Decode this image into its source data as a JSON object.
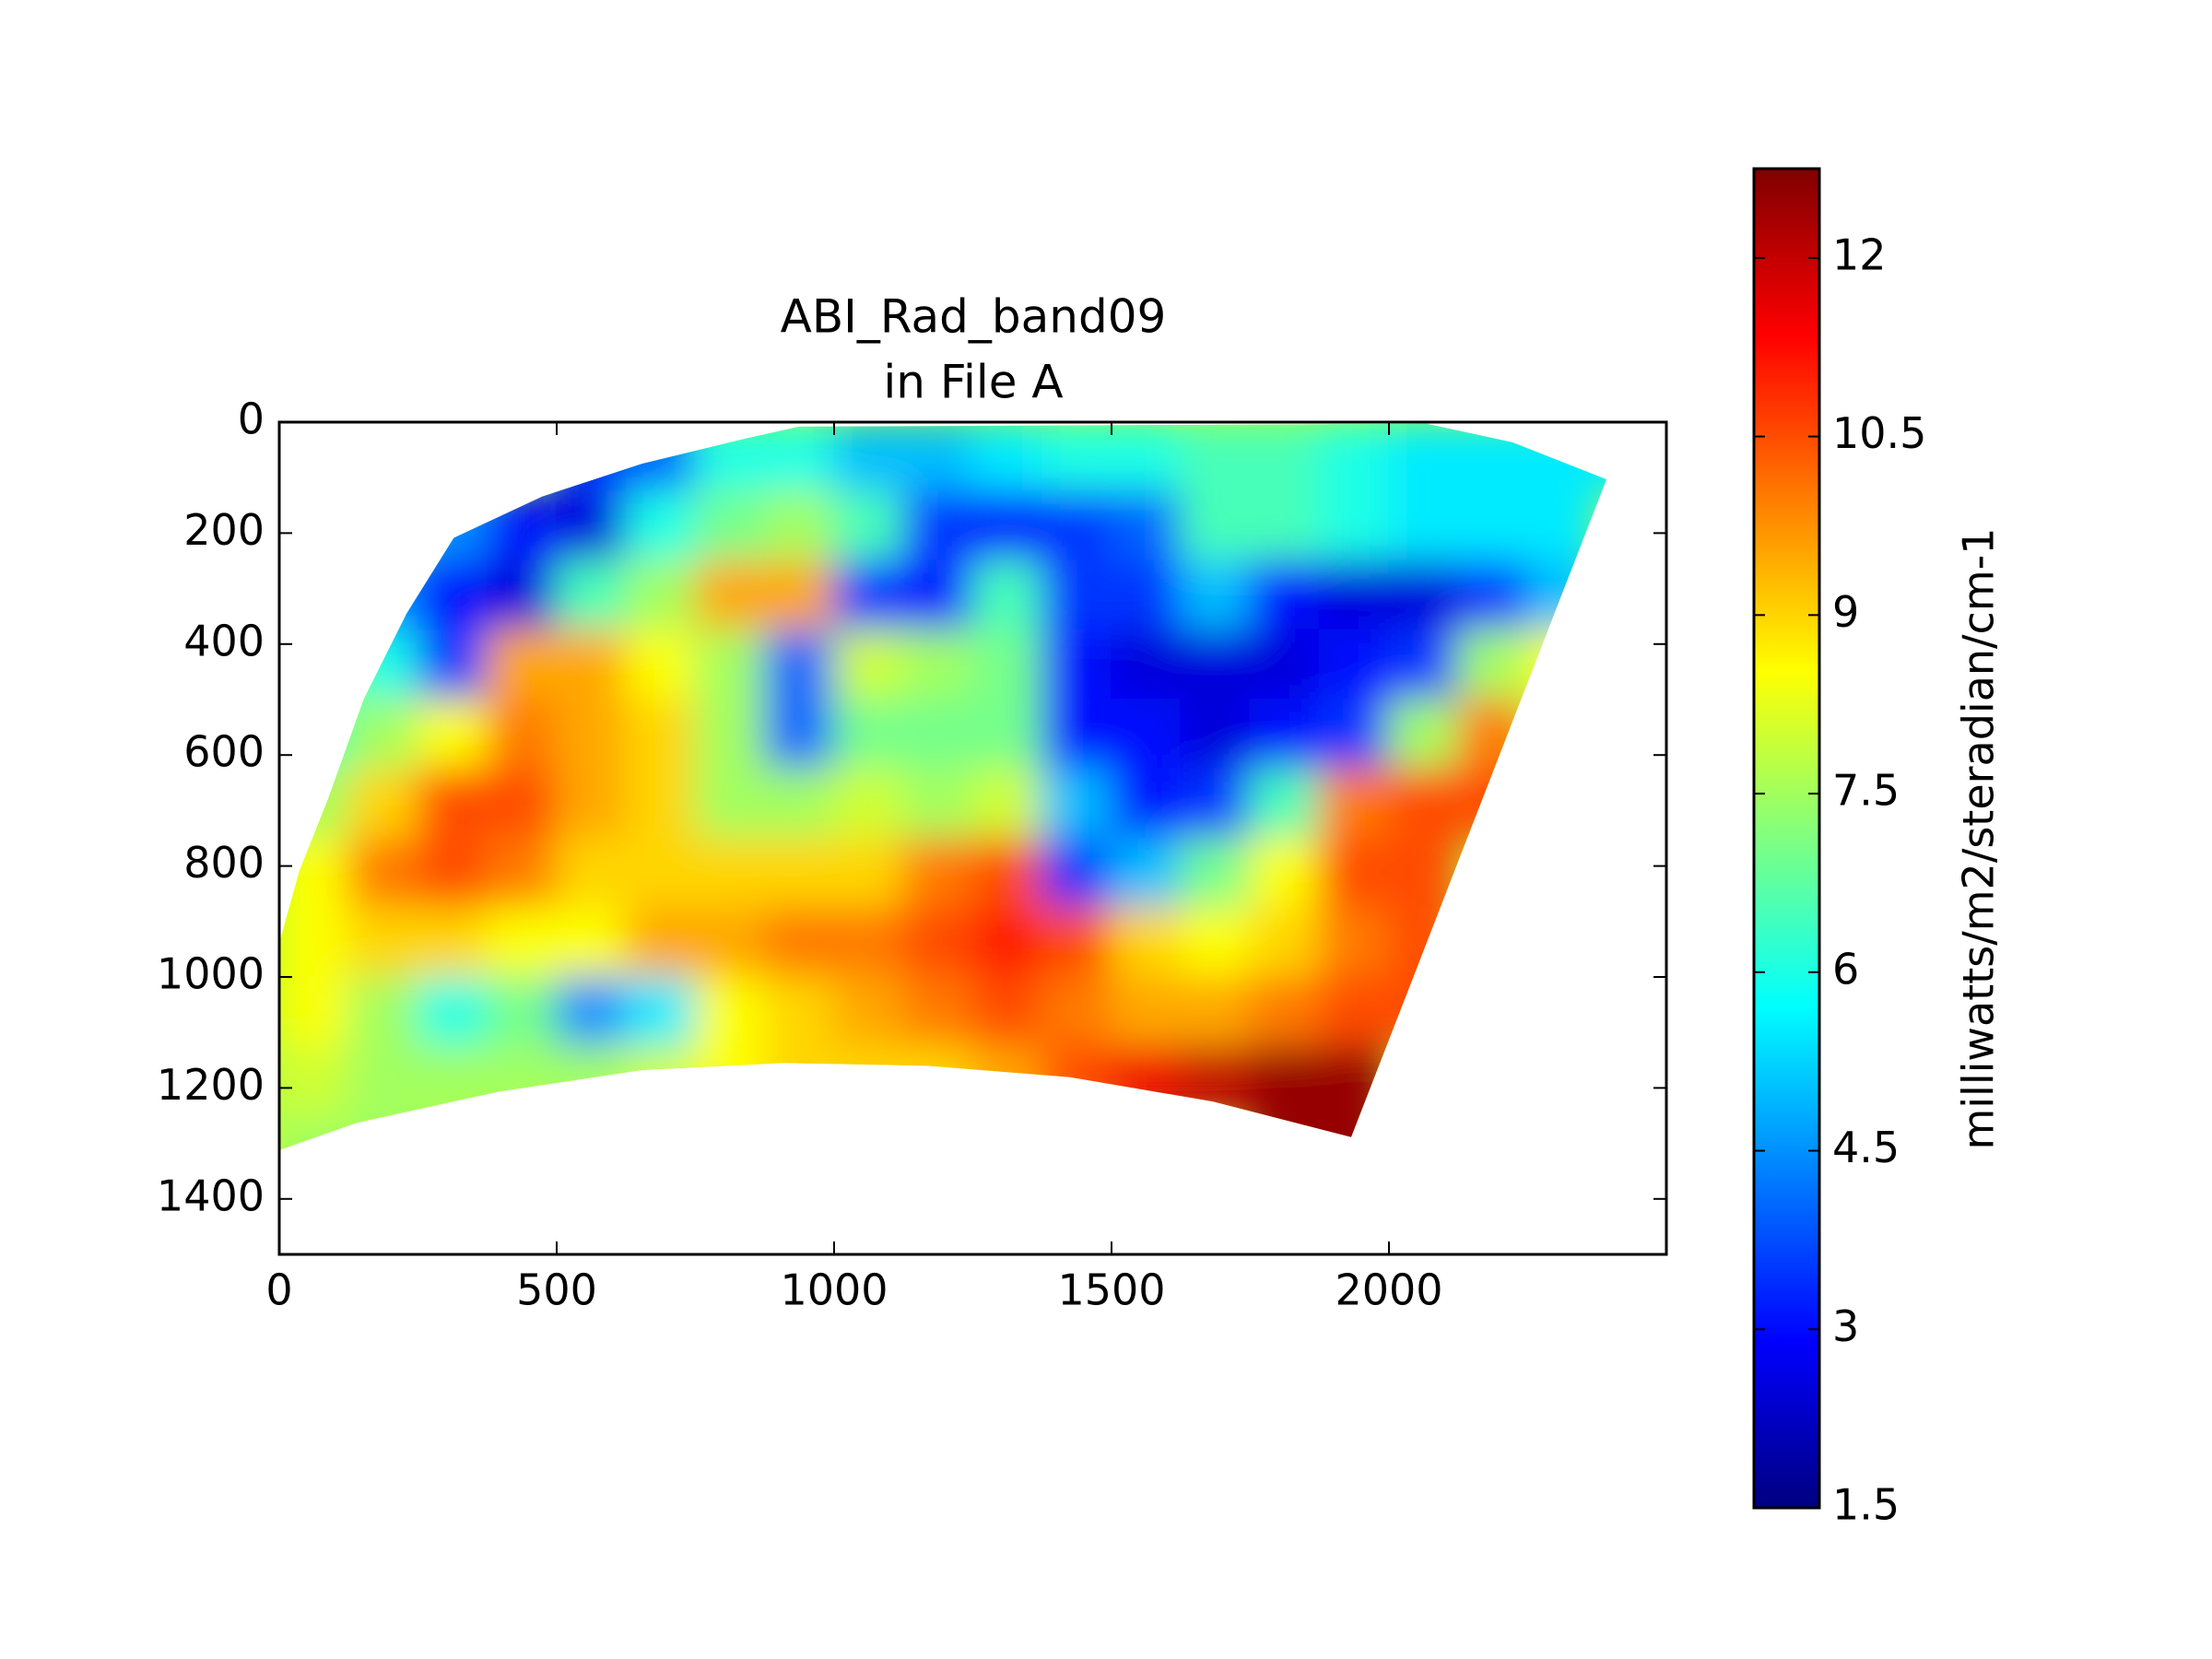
{
  "chart_data": {
    "type": "heatmap",
    "title": "ABI_Rad_band09",
    "subtitle": "in File A",
    "x": [
      62.5,
      187.5,
      312.5,
      437.5,
      562.5,
      687.5,
      812.5,
      937.5,
      1062.5,
      1187.5,
      1312.5,
      1437.5,
      1562.5,
      1687.5,
      1812.5,
      1937.5,
      2062.5,
      2187.5,
      2312.5,
      2437.5
    ],
    "y": [
      62.5,
      187.5,
      312.5,
      437.5,
      562.5,
      687.5,
      812.5,
      937.5,
      1062.5,
      1187.5,
      1312.5
    ],
    "z": [
      [
        null,
        null,
        null,
        null,
        3.5,
        4,
        6,
        6,
        5,
        5,
        5.5,
        6,
        6,
        6.5,
        6.5,
        6,
        5.5,
        5.5,
        5.5,
        5.5
      ],
      [
        null,
        null,
        4.5,
        3,
        2.5,
        6,
        7,
        7.5,
        6.5,
        3.5,
        3,
        3.5,
        4,
        6.5,
        6.5,
        6,
        5.5,
        5.5,
        5.5,
        null
      ],
      [
        null,
        4.5,
        3,
        2.5,
        6.5,
        7.5,
        9.5,
        9.5,
        3.5,
        3,
        6.5,
        3.5,
        3.5,
        5,
        3,
        2.5,
        2.5,
        3.5,
        5,
        null
      ],
      [
        null,
        6,
        3.5,
        9.5,
        9.5,
        8.5,
        7.5,
        4,
        8,
        7.5,
        7,
        3,
        2.5,
        2.5,
        2.5,
        3,
        3.5,
        7.5,
        8.5,
        null
      ],
      [
        6.5,
        7.5,
        8.5,
        10,
        9.5,
        9,
        7.5,
        4,
        7,
        7,
        7,
        3,
        3,
        2.5,
        3,
        3.5,
        7.5,
        10,
        null,
        null
      ],
      [
        7.5,
        9,
        10.5,
        10.5,
        9.5,
        9,
        7.5,
        7.5,
        8,
        7.5,
        8,
        5,
        3,
        3.5,
        6.5,
        10,
        10.5,
        10.5,
        null,
        null
      ],
      [
        8.5,
        10,
        10.5,
        10,
        9,
        9,
        9,
        9,
        9,
        10,
        10.5,
        3.5,
        5,
        7,
        8.5,
        10.5,
        10.5,
        null,
        null,
        null
      ],
      [
        8.5,
        9,
        9,
        8.5,
        8.5,
        9.5,
        9.5,
        10,
        10,
        10.5,
        11,
        10.5,
        9,
        8.5,
        9,
        10,
        10.5,
        null,
        null,
        null
      ],
      [
        8.5,
        7.5,
        6,
        7,
        4.5,
        5.5,
        8.5,
        9,
        9.5,
        10,
        10.5,
        10,
        9.5,
        9.5,
        10,
        10.5,
        10.5,
        null,
        null,
        null
      ],
      [
        8,
        7.5,
        7.5,
        7.5,
        7.5,
        8,
        8.5,
        9,
        9,
        9,
        9.5,
        10.5,
        11.5,
        12,
        12.5,
        12.5,
        null,
        null,
        null,
        null
      ],
      [
        7.5,
        7.5,
        null,
        null,
        null,
        null,
        null,
        null,
        null,
        null,
        null,
        null,
        null,
        null,
        12.5,
        12.5,
        null,
        null,
        null,
        null
      ]
    ],
    "xlim": [
      0,
      2500
    ],
    "ylim": [
      1500,
      0
    ],
    "xticks": [
      0,
      500,
      1000,
      1500,
      2000
    ],
    "yticks": [
      0,
      200,
      400,
      600,
      800,
      1000,
      1200,
      1400
    ],
    "colormap": "jet",
    "clim": [
      1.5,
      12.75
    ],
    "cticks": [
      1.5,
      3,
      4.5,
      6,
      7.5,
      9,
      10.5,
      12
    ],
    "colorbar_label": "milliwatts/m2/steradian/cm-1"
  }
}
